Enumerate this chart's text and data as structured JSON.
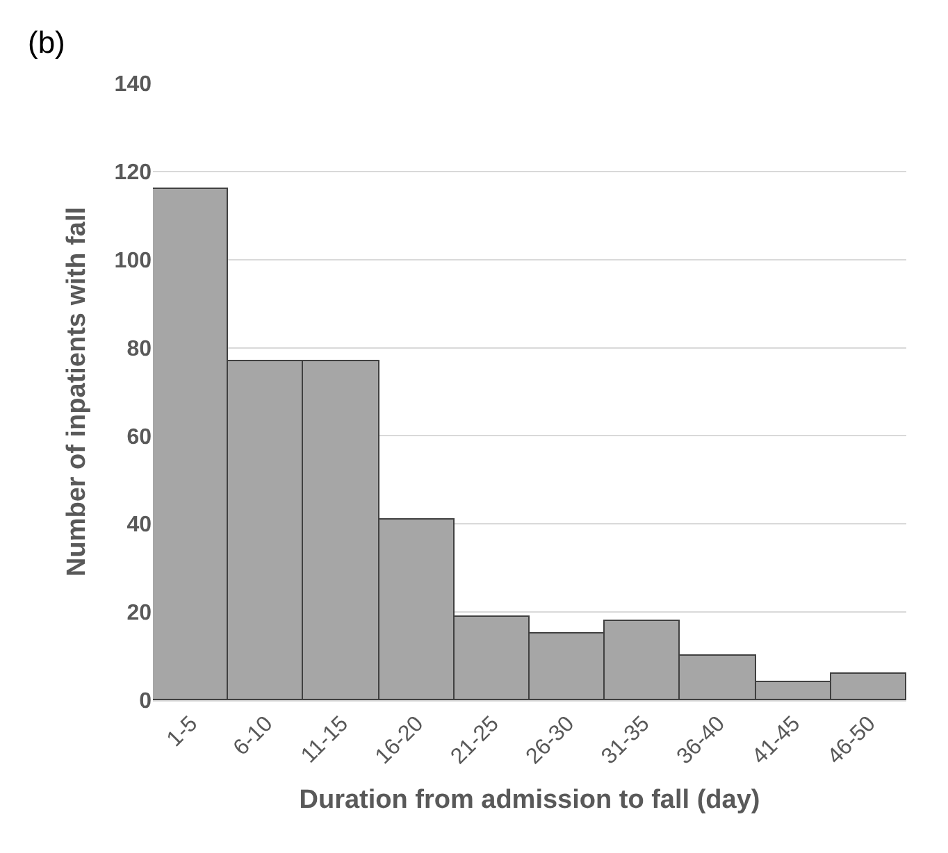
{
  "chart_data": {
    "type": "bar",
    "categories": [
      "1-5",
      "6-10",
      "11-15",
      "16-20",
      "21-25",
      "26-30",
      "31-35",
      "36-40",
      "41-45",
      "46-50"
    ],
    "values": [
      116,
      77,
      77,
      41,
      19,
      15,
      18,
      10,
      4,
      6
    ],
    "color": "#a6a6a6",
    "xlabel": "Duration from admission to fall (day)",
    "ylabel": "Number of inpatients with fall",
    "annotations": [
      "(b)"
    ],
    "ylim": [
      0,
      140
    ],
    "yticks": [
      0,
      20,
      40,
      60,
      80,
      100,
      120,
      140
    ],
    "grid": "y",
    "legend": false
  }
}
